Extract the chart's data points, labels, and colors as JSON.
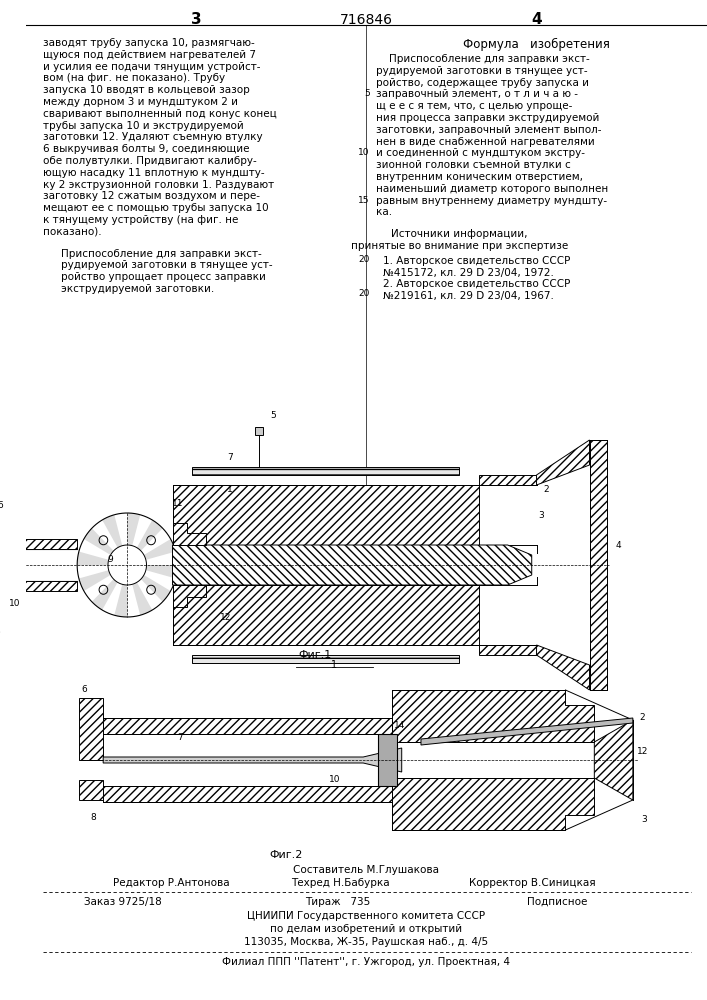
{
  "bg_color": "#ffffff",
  "patent_number": "716846",
  "page_left": "3",
  "page_right": "4",
  "formula_header": "Формула   изобретения",
  "left_col_lines": [
    "заводят трубу запуска 10, размягчаю-",
    "щуюся под действием нагревателей 7",
    "и усилия ее подачи тянущим устройст-",
    "вом (на фиг. не показано). Трубу",
    "запуска 10 вводят в кольцевой зазор",
    "между дорном 3 и мундштуком 2 и",
    "сваривают выполненный под конус конец",
    "трубы запуска 10 и экструдируемой",
    "заготовки 12. Удаляют съемную втулку",
    "6 выкручивая болты 9, соединяющие",
    "обе полувтулки. Придвигают калибру-",
    "ющую насадку 11 вплотную к мундшту-",
    "ку 2 экструзионной головки 1. Раздувают",
    "заготовку 12 сжатым воздухом и пере-",
    "мещают ее с помощью трубы запуска 10",
    "к тянущему устройству (на фиг. не",
    "показано)."
  ],
  "left_col_para2": [
    "Приспособление для заправки экст-",
    "рудируемой заготовки в тянущее уст-",
    "ройство упрощает процесс заправки",
    "экструдируемой заготовки."
  ],
  "right_col_lines": [
    "    Приспособление для заправки экст-",
    "рудируемой заготовки в тянущее уст-",
    "ройство, содержащее трубу запуска и",
    "заправочный элемент, о т л и ч а ю -",
    "щ е е с я тем, что, с целью упроще-",
    "ния процесса заправки экструдируемой",
    "заготовки, заправочный элемент выпол-",
    "нен в виде снабженной нагревателями",
    "и соединенной с мундштуком экстру-",
    "зионной головки съемной втулки с",
    "внутренним коническим отверстием,",
    "наименьший диаметр которого выполнен",
    "равным внутреннему диаметру мундшту-",
    "ка."
  ],
  "line_numbers_right": [
    "5",
    "10",
    "15",
    "20"
  ],
  "sources_header": "Источники информации,",
  "sources_sub": "принятые во внимание при экспертизе",
  "source1a": "1. Авторское свидетельство СССР",
  "source1b": "№415172, кл. 29 D 23/04, 1972.",
  "source2a": "2. Авторское свидетельство СССР",
  "source2b": "№219161, кл. 29 D 23/04, 1967.",
  "fig1_label": "Фиг.1",
  "fig2_label": "Фиг.2",
  "footer_composer": "Составитель М.Глушакова",
  "footer_editor": "Редактор Р.Антонова",
  "footer_techred": "Техред Н.Бабурка",
  "footer_corrector": "Корректор В.Синицкая",
  "footer_order": "Заказ 9725/18",
  "footer_tirazh": "Тираж   735",
  "footer_podp": "Подписное",
  "footer_org1": "ЦНИИПИ Государственного комитета СССР",
  "footer_org2": "по делам изобретений и открытий",
  "footer_addr": "113035, Москва, Ж-35, Раушская наб., д. 4/5",
  "footer_filial": "Филиал ППП ''Патент'', г. Ужгород, ул. Проектная, 4"
}
